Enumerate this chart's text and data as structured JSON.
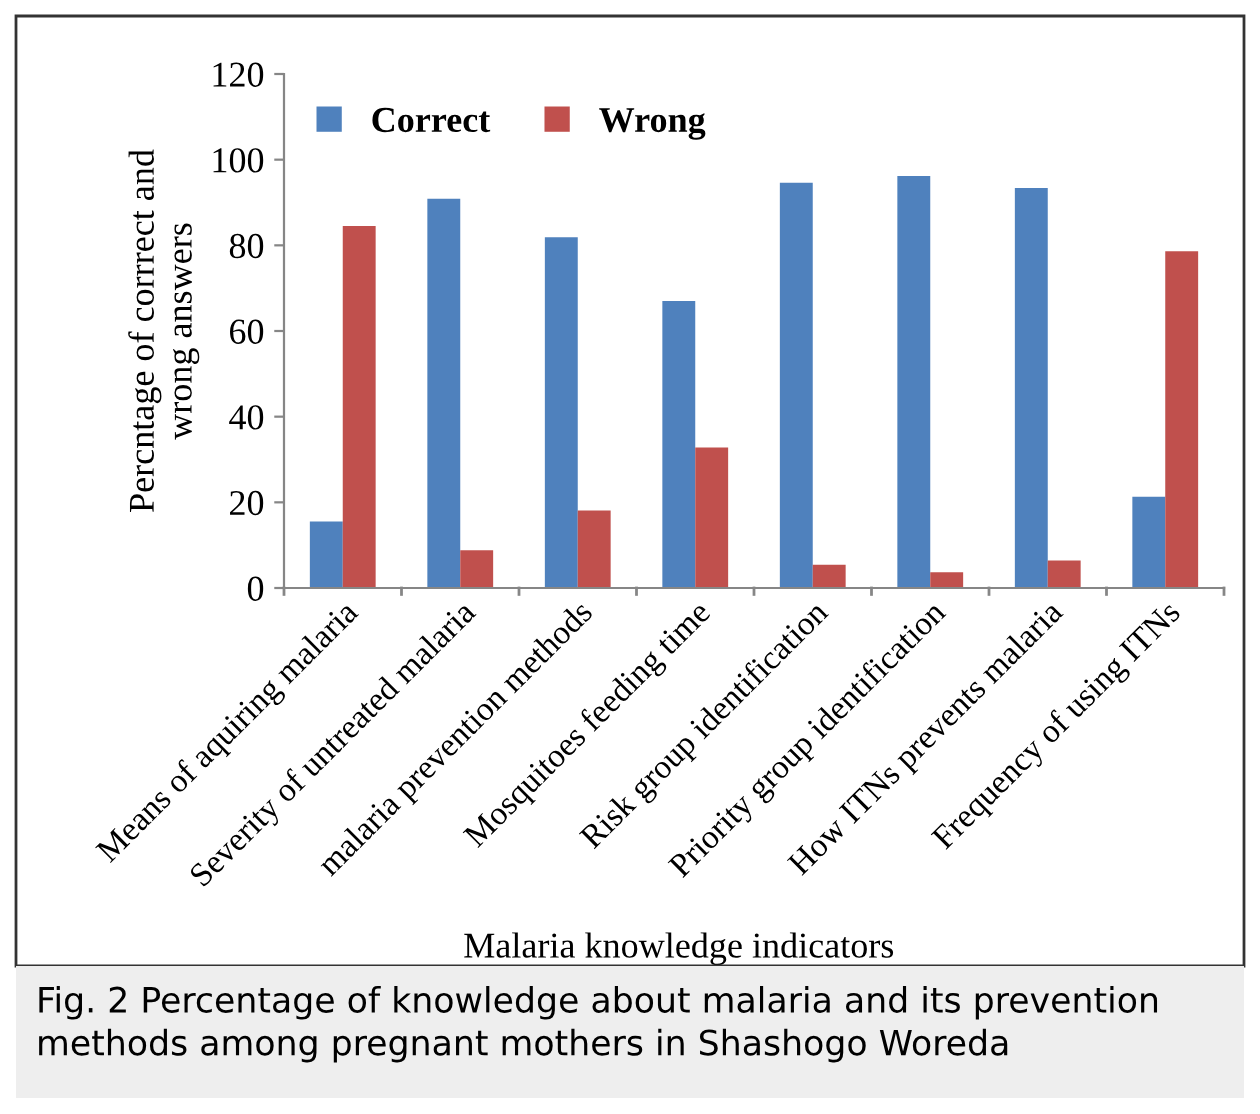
{
  "chart_data": {
    "type": "bar",
    "xlabel": "Malaria knowledge indicators",
    "ylabel": "Percntage of corrrect and\nwrong answers",
    "categories": [
      "Means of aquiring malaria",
      "Severity of untreated malaria",
      "malaria prevention methods",
      "Mosquitoes feeding time",
      "Risk group identification",
      "Priority group identification",
      "How ITNs prevents malaria",
      "Frequency of using ITNs"
    ],
    "series": [
      {
        "name": "Correct",
        "color": "#4f81bd",
        "values": [
          15.5,
          90.9,
          81.9,
          67,
          94.6,
          96.2,
          93.4,
          21.3
        ]
      },
      {
        "name": "Wrong",
        "color": "#c0504d",
        "values": [
          84.5,
          8.8,
          18.1,
          32.8,
          5.4,
          3.7,
          6.4,
          78.6
        ]
      }
    ],
    "ylim": [
      0,
      120
    ],
    "yticks": [
      0,
      20,
      40,
      60,
      80,
      100,
      120
    ],
    "grid": false,
    "legend": "top left",
    "annotations": [
      "Fig. 2 Percentage of knowledge about malaria and its prevention methods among pregnant mothers in Shashogo Woreda"
    ]
  }
}
